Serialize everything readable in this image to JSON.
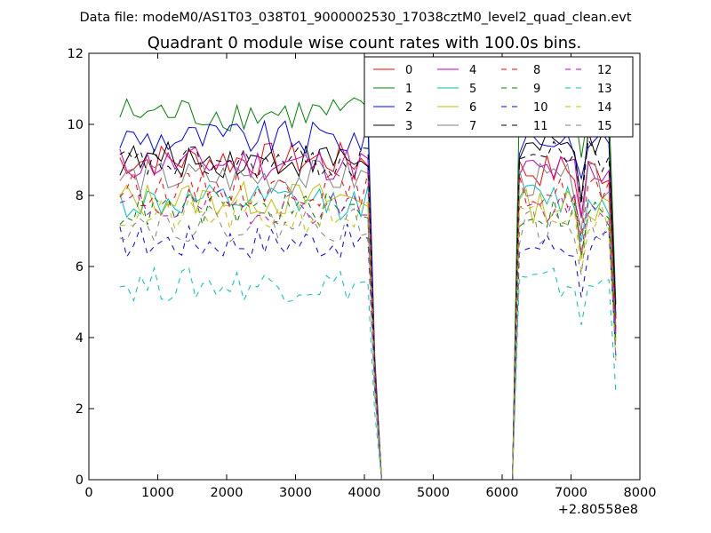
{
  "chart_data": {
    "type": "line",
    "suptitle": "Data file: modeM0/AS1T03_038T01_9000002530_17038cztM0_level2_quad_clean.evt",
    "title": "Quadrant 0 module wise count rates with 100.0s bins.",
    "xlabel": "",
    "ylabel": "",
    "x_offset_label": "+2.80558e8",
    "xlim": [
      0,
      8000
    ],
    "ylim": [
      0,
      12
    ],
    "xticks": [
      0,
      1000,
      2000,
      3000,
      4000,
      5000,
      6000,
      7000,
      8000
    ],
    "yticks": [
      0,
      2,
      4,
      6,
      8,
      10,
      12
    ],
    "legend_position": "top-right",
    "legend_columns": 4,
    "segments": [
      {
        "x_start": 450,
        "x_end": 4050,
        "step": 100
      },
      {
        "x_start": 4150,
        "x_end": 4250,
        "step": 100
      },
      {
        "x_start": 6250,
        "x_end": 7650,
        "step": 100
      }
    ],
    "gap_value": 0,
    "series": [
      {
        "name": "0",
        "color": "#ff0000",
        "dash": "solid",
        "levels": [
          9.0,
          0,
          8.7
        ]
      },
      {
        "name": "1",
        "color": "#008000",
        "dash": "solid",
        "levels": [
          10.3,
          0,
          10.3
        ]
      },
      {
        "name": "2",
        "color": "#0000ff",
        "dash": "solid",
        "levels": [
          9.6,
          0,
          9.6
        ]
      },
      {
        "name": "3",
        "color": "#000000",
        "dash": "solid",
        "levels": [
          9.0,
          0,
          9.3
        ]
      },
      {
        "name": "4",
        "color": "#bf00bf",
        "dash": "solid",
        "levels": [
          8.9,
          0,
          8.7
        ]
      },
      {
        "name": "5",
        "color": "#00bfbf",
        "dash": "solid",
        "levels": [
          7.8,
          0,
          7.9
        ]
      },
      {
        "name": "6",
        "color": "#bfbf00",
        "dash": "solid",
        "levels": [
          7.9,
          0,
          7.7
        ]
      },
      {
        "name": "7",
        "color": "#808080",
        "dash": "solid",
        "levels": [
          8.5,
          0,
          8.4
        ]
      },
      {
        "name": "8",
        "color": "#ff0000",
        "dash": "dashed",
        "levels": [
          8.2,
          0,
          8.1
        ]
      },
      {
        "name": "9",
        "color": "#008000",
        "dash": "dashed",
        "levels": [
          7.6,
          0,
          7.5
        ]
      },
      {
        "name": "10",
        "color": "#0000ff",
        "dash": "dashed",
        "levels": [
          6.7,
          0,
          6.6
        ]
      },
      {
        "name": "11",
        "color": "#000000",
        "dash": "dashed",
        "levels": [
          8.9,
          0,
          9.1
        ]
      },
      {
        "name": "12",
        "color": "#bf00bf",
        "dash": "dashed",
        "levels": [
          7.7,
          0,
          7.6
        ]
      },
      {
        "name": "13",
        "color": "#00bfbf",
        "dash": "dashed",
        "levels": [
          5.5,
          0,
          5.5
        ]
      },
      {
        "name": "14",
        "color": "#bfbf00",
        "dash": "dashed",
        "levels": [
          7.4,
          0,
          7.3
        ]
      },
      {
        "name": "15",
        "color": "#808080",
        "dash": "dashed",
        "levels": [
          7.2,
          0,
          7.1
        ]
      }
    ]
  }
}
